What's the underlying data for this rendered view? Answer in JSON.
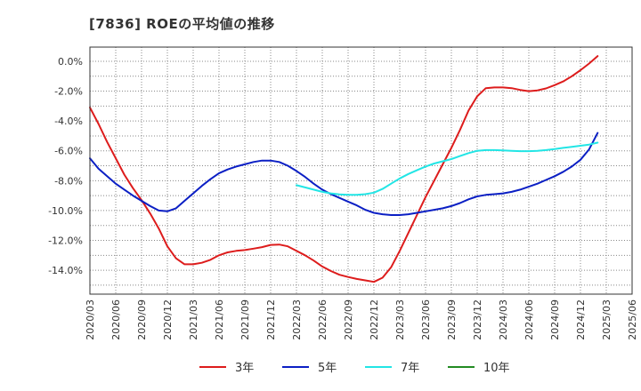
{
  "chart_data": {
    "type": "line",
    "title": "[7836]  ROEの平均値の推移",
    "xlabel": "",
    "ylabel": "",
    "ylim": [
      -15.6,
      0.95
    ],
    "y_ticks": [
      0,
      -2,
      -4,
      -6,
      -8,
      -10,
      -12,
      -14
    ],
    "y_tick_labels": [
      "0.0%",
      "-2.0%",
      "-4.0%",
      "-6.0%",
      "-8.0%",
      "-10.0%",
      "-12.0%",
      "-14.0%"
    ],
    "x_ticks": [
      "2020/03",
      "2020/06",
      "2020/09",
      "2020/12",
      "2021/03",
      "2021/06",
      "2021/09",
      "2021/12",
      "2022/03",
      "2022/06",
      "2022/09",
      "2022/12",
      "2023/03",
      "2023/06",
      "2023/09",
      "2023/12",
      "2024/03",
      "2024/06",
      "2024/09",
      "2024/12",
      "2025/03",
      "2025/06"
    ],
    "grid": true,
    "legend_position": "bottom",
    "series": [
      {
        "name": "3年",
        "color": "#dd1c1c",
        "values": [
          -3.1,
          -4.2,
          -5.4,
          -6.5,
          -7.6,
          -8.5,
          -9.3,
          -10.2,
          -11.2,
          -12.4,
          -13.2,
          -13.6,
          -13.6,
          -13.5,
          -13.3,
          -13.0,
          -12.8,
          -12.7,
          -12.65,
          -12.55,
          -12.45,
          -12.3,
          -12.28,
          -12.4,
          -12.7,
          -13.0,
          -13.35,
          -13.75,
          -14.05,
          -14.3,
          -14.45,
          -14.58,
          -14.68,
          -14.78,
          -14.5,
          -13.8,
          -12.7,
          -11.5,
          -10.3,
          -9.1,
          -8.0,
          -6.9,
          -5.8,
          -4.6,
          -3.3,
          -2.35,
          -1.8,
          -1.75,
          -1.75,
          -1.8,
          -1.92,
          -2.0,
          -1.95,
          -1.82,
          -1.6,
          -1.35,
          -1.0,
          -0.6,
          -0.15,
          0.35
        ]
      },
      {
        "name": "5年",
        "color": "#0b1fc4",
        "values": [
          -6.5,
          -7.2,
          -7.7,
          -8.2,
          -8.6,
          -9.0,
          -9.35,
          -9.7,
          -10.0,
          -10.05,
          -9.85,
          -9.35,
          -8.85,
          -8.35,
          -7.9,
          -7.5,
          -7.25,
          -7.05,
          -6.9,
          -6.75,
          -6.65,
          -6.65,
          -6.75,
          -7.0,
          -7.35,
          -7.75,
          -8.2,
          -8.6,
          -8.9,
          -9.15,
          -9.4,
          -9.65,
          -9.95,
          -10.15,
          -10.25,
          -10.3,
          -10.3,
          -10.25,
          -10.15,
          -10.05,
          -9.95,
          -9.85,
          -9.7,
          -9.5,
          -9.25,
          -9.05,
          -8.95,
          -8.9,
          -8.85,
          -8.75,
          -8.6,
          -8.4,
          -8.2,
          -7.95,
          -7.7,
          -7.4,
          -7.05,
          -6.6,
          -5.9,
          -4.8
        ]
      },
      {
        "name": "7年",
        "color": "#22e5e5",
        "values": [
          null,
          null,
          null,
          null,
          null,
          null,
          null,
          null,
          null,
          null,
          null,
          null,
          null,
          null,
          null,
          null,
          null,
          null,
          null,
          null,
          null,
          null,
          null,
          null,
          -8.3,
          -8.45,
          -8.6,
          -8.75,
          -8.85,
          -8.92,
          -8.95,
          -8.95,
          -8.9,
          -8.8,
          -8.55,
          -8.2,
          -7.85,
          -7.55,
          -7.3,
          -7.05,
          -6.85,
          -6.7,
          -6.55,
          -6.35,
          -6.15,
          -6.0,
          -5.95,
          -5.95,
          -5.97,
          -6.0,
          -6.02,
          -6.02,
          -6.0,
          -5.95,
          -5.88,
          -5.8,
          -5.73,
          -5.66,
          -5.58,
          -5.45
        ]
      },
      {
        "name": "10年",
        "color": "#228b22",
        "values": []
      }
    ]
  }
}
